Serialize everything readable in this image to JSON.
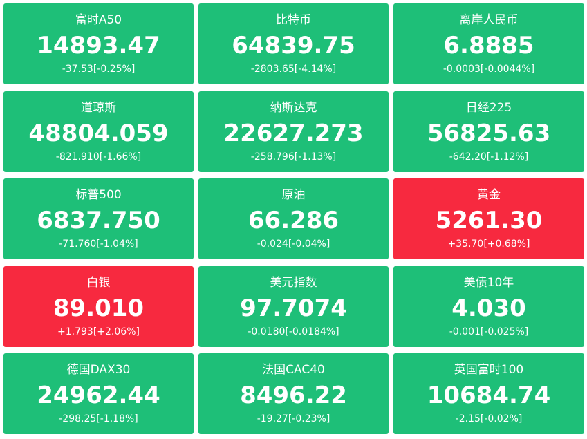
{
  "tiles": [
    {
      "name": "富时A50",
      "price": "14893.47",
      "change": "-37.53[-0.25%]",
      "color": "#1ebf78"
    },
    {
      "name": "比特币",
      "price": "64839.75",
      "change": "-2803.65[-4.14%]",
      "color": "#1ebf78"
    },
    {
      "name": "离岸人民币",
      "price": "6.8885",
      "change": "-0.0003[-0.0044%]",
      "color": "#1ebf78"
    },
    {
      "name": "道琼斯",
      "price": "48804.059",
      "change": "-821.910[-1.66%]",
      "color": "#1ebf78"
    },
    {
      "name": "纳斯达克",
      "price": "22627.273",
      "change": "-258.796[-1.13%]",
      "color": "#1ebf78"
    },
    {
      "name": "日经225",
      "price": "56825.63",
      "change": "-642.20[-1.12%]",
      "color": "#1ebf78"
    },
    {
      "name": "标普500",
      "price": "6837.750",
      "change": "-71.760[-1.04%]",
      "color": "#1ebf78"
    },
    {
      "name": "原油",
      "price": "66.286",
      "change": "-0.024[-0.04%]",
      "color": "#1ebf78"
    },
    {
      "name": "黄金",
      "price": "5261.30",
      "change": "+35.70[+0.68%]",
      "color": "#f7293f"
    },
    {
      "name": "白银",
      "price": "89.010",
      "change": "+1.793[+2.06%]",
      "color": "#f7293f"
    },
    {
      "name": "美元指数",
      "price": "97.7074",
      "change": "-0.0180[-0.0184%]",
      "color": "#1ebf78"
    },
    {
      "name": "美债10年",
      "price": "4.030",
      "change": "-0.001[-0.025%]",
      "color": "#1ebf78"
    },
    {
      "name": "德国DAX30",
      "price": "24962.44",
      "change": "-298.25[-1.18%]",
      "color": "#1ebf78"
    },
    {
      "name": "法国CAC40",
      "price": "8496.22",
      "change": "-19.27[-0.23%]",
      "color": "#1ebf78"
    },
    {
      "name": "英国富时100",
      "price": "10684.74",
      "change": "-2.15[-0.02%]",
      "color": "#1ebf78"
    }
  ]
}
